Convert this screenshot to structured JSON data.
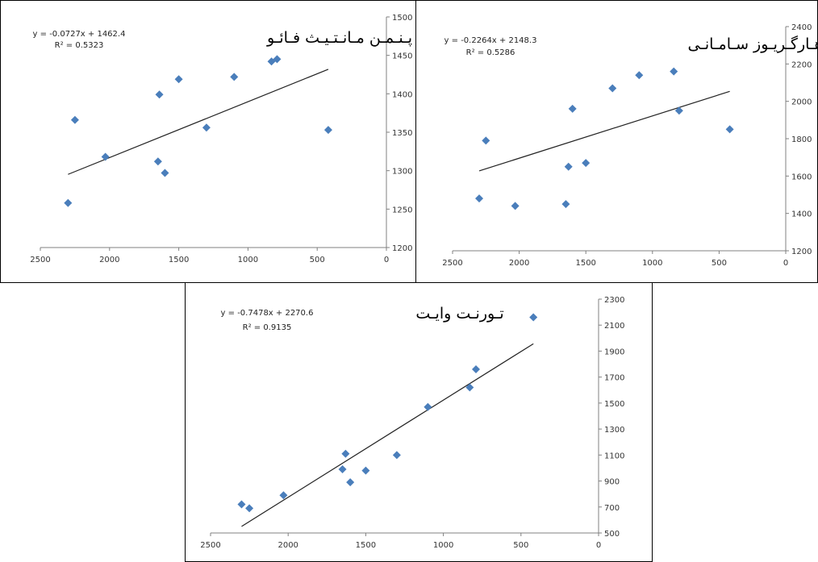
{
  "colors": {
    "marker": "#4a7ebb",
    "trendline": "#222222",
    "axis": "#808080",
    "background": "#ffffff",
    "watermark": "#bdbdbd"
  },
  "chart_data": [
    {
      "type": "scatter",
      "title": "پـنـمـن مـانـتـیـث فـائـو",
      "xlabel": "",
      "ylabel": "",
      "xlim": [
        2500,
        0
      ],
      "ylim": [
        1200,
        1500
      ],
      "x_axis_reversed": true,
      "y_axis_position": "right",
      "xticks": [
        2500,
        2000,
        1500,
        1000,
        500,
        0
      ],
      "yticks": [
        1200,
        1250,
        1300,
        1350,
        1400,
        1450,
        1500
      ],
      "points": [
        {
          "x": 2300,
          "y": 1258
        },
        {
          "x": 2250,
          "y": 1366
        },
        {
          "x": 2030,
          "y": 1318
        },
        {
          "x": 1650,
          "y": 1312
        },
        {
          "x": 1640,
          "y": 1399
        },
        {
          "x": 1600,
          "y": 1297
        },
        {
          "x": 1500,
          "y": 1419
        },
        {
          "x": 1300,
          "y": 1356
        },
        {
          "x": 1100,
          "y": 1422
        },
        {
          "x": 830,
          "y": 1442
        },
        {
          "x": 790,
          "y": 1445
        },
        {
          "x": 420,
          "y": 1353
        }
      ],
      "trendline": {
        "slope": -0.0727,
        "intercept": 1462.4,
        "x_range": [
          2300,
          420
        ]
      },
      "equation": "y = -0.0727x + 1462.4",
      "r_squared": "R² = 0.5323",
      "legend": "none",
      "grid": false
    },
    {
      "type": "scatter",
      "title": "هـارگـریـوز سـامـانـی",
      "xlabel": "",
      "ylabel": "",
      "xlim": [
        2500,
        0
      ],
      "ylim": [
        1200,
        2400
      ],
      "x_axis_reversed": true,
      "y_axis_position": "right",
      "xticks": [
        2500,
        2000,
        1500,
        1000,
        500,
        0
      ],
      "yticks": [
        1200,
        1400,
        1600,
        1800,
        2000,
        2200,
        2400
      ],
      "points": [
        {
          "x": 2300,
          "y": 1480
        },
        {
          "x": 2250,
          "y": 1790
        },
        {
          "x": 2030,
          "y": 1440
        },
        {
          "x": 1650,
          "y": 1450
        },
        {
          "x": 1630,
          "y": 1650
        },
        {
          "x": 1600,
          "y": 1960
        },
        {
          "x": 1500,
          "y": 1670
        },
        {
          "x": 1300,
          "y": 2070
        },
        {
          "x": 1100,
          "y": 2140
        },
        {
          "x": 840,
          "y": 2160
        },
        {
          "x": 800,
          "y": 1950
        },
        {
          "x": 420,
          "y": 1850
        }
      ],
      "trendline": {
        "slope": -0.2264,
        "intercept": 2148.3,
        "x_range": [
          2300,
          420
        ]
      },
      "equation": "y = -0.2264x + 2148.3",
      "r_squared": "R² = 0.5286",
      "legend": "none",
      "grid": false
    },
    {
      "type": "scatter",
      "title": "تـورنـت وایـت",
      "xlabel": "",
      "ylabel": "",
      "xlim": [
        2500,
        0
      ],
      "ylim": [
        500,
        2300
      ],
      "x_axis_reversed": true,
      "y_axis_position": "right",
      "xticks": [
        2500,
        2000,
        1500,
        1000,
        500,
        0
      ],
      "yticks": [
        500,
        700,
        900,
        1100,
        1300,
        1500,
        1700,
        1900,
        2100,
        2300
      ],
      "points": [
        {
          "x": 2300,
          "y": 720
        },
        {
          "x": 2250,
          "y": 690
        },
        {
          "x": 2030,
          "y": 790
        },
        {
          "x": 1650,
          "y": 990
        },
        {
          "x": 1630,
          "y": 1110
        },
        {
          "x": 1600,
          "y": 890
        },
        {
          "x": 1500,
          "y": 980
        },
        {
          "x": 1300,
          "y": 1100
        },
        {
          "x": 1100,
          "y": 1470
        },
        {
          "x": 830,
          "y": 1620
        },
        {
          "x": 790,
          "y": 1760
        },
        {
          "x": 420,
          "y": 2160
        }
      ],
      "trendline": {
        "slope": -0.7478,
        "intercept": 2270.6,
        "x_range": [
          2300,
          420
        ]
      },
      "equation": "y = -0.7478x + 2270.6",
      "r_squared": "R² = 0.9135",
      "legend": "none",
      "grid": false
    }
  ]
}
